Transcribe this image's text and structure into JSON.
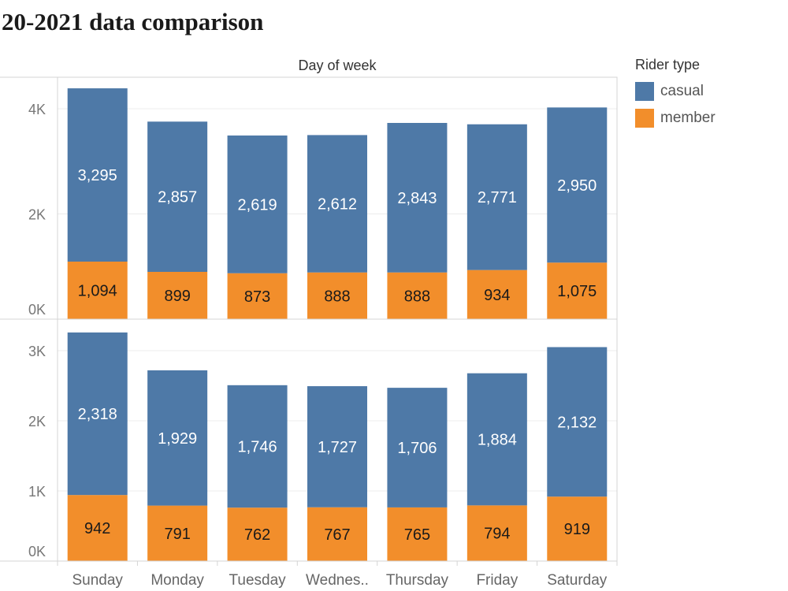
{
  "title": "20-2021 data comparison",
  "colors": {
    "casual": "#4e79a7",
    "member": "#f28e2b"
  },
  "legend": {
    "title": "Rider type",
    "items": [
      {
        "label": "casual",
        "color": "#4e79a7"
      },
      {
        "label": "member",
        "color": "#f28e2b"
      }
    ]
  },
  "chart_data": {
    "type": "bar",
    "stacked": true,
    "column_header": "Day of week",
    "categories": [
      "Sunday",
      "Monday",
      "Tuesday",
      "Wednes..",
      "Thursday",
      "Friday",
      "Saturday"
    ],
    "panels": [
      {
        "y_ticks": [
          {
            "value": 0,
            "label": "0K"
          },
          {
            "value": 2000,
            "label": "2K"
          },
          {
            "value": 4000,
            "label": "4K"
          }
        ],
        "ylim": [
          0,
          4600
        ],
        "series": [
          {
            "name": "member",
            "values": [
              1094,
              899,
              873,
              888,
              888,
              934,
              1075
            ],
            "labels": [
              "1,094",
              "899",
              "873",
              "888",
              "888",
              "934",
              "1,075"
            ]
          },
          {
            "name": "casual",
            "values": [
              3295,
              2857,
              2619,
              2612,
              2843,
              2771,
              2950
            ],
            "labels": [
              "3,295",
              "2,857",
              "2,619",
              "2,612",
              "2,843",
              "2,771",
              "2,950"
            ]
          }
        ]
      },
      {
        "y_ticks": [
          {
            "value": 0,
            "label": "0K"
          },
          {
            "value": 1000,
            "label": "1K"
          },
          {
            "value": 2000,
            "label": "2K"
          },
          {
            "value": 3000,
            "label": "3K"
          }
        ],
        "ylim": [
          0,
          3450
        ],
        "series": [
          {
            "name": "member",
            "values": [
              942,
              791,
              762,
              767,
              765,
              794,
              919
            ],
            "labels": [
              "942",
              "791",
              "762",
              "767",
              "765",
              "794",
              "919"
            ]
          },
          {
            "name": "casual",
            "values": [
              2318,
              1929,
              1746,
              1727,
              1706,
              1884,
              2132
            ],
            "labels": [
              "2,318",
              "1,929",
              "1,746",
              "1,727",
              "1,706",
              "1,884",
              "2,132"
            ]
          }
        ]
      }
    ]
  }
}
